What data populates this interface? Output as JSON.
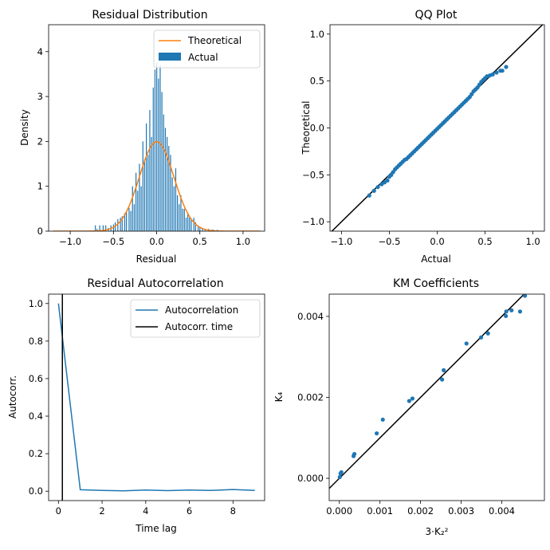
{
  "chart_data": [
    {
      "type": "bar",
      "title": "Residual Distribution",
      "xlabel": "Residual",
      "ylabel": "Density",
      "xlim": [
        -1.25,
        1.25
      ],
      "ylim": [
        0,
        4.6
      ],
      "xticks": [
        -1.0,
        -0.5,
        0.0,
        0.5,
        1.0
      ],
      "xtick_labels": [
        "−1.0",
        "−0.5",
        "0.0",
        "0.5",
        "1.0"
      ],
      "yticks": [
        0,
        1,
        2,
        3,
        4
      ],
      "ytick_labels": [
        "0",
        "1",
        "2",
        "3",
        "4"
      ],
      "legend": "top-right",
      "series": [
        {
          "name": "Theoretical",
          "kind": "line",
          "color": "#ff7f0e",
          "sigma": 0.2,
          "x_range": [
            -1.2,
            1.2
          ]
        },
        {
          "name": "Actual",
          "kind": "bar",
          "color": "#1f77b4",
          "bins": [
            [
              -0.71,
              0.13
            ],
            [
              -0.69,
              0.05
            ],
            [
              -0.66,
              0.13
            ],
            [
              -0.62,
              0.13
            ],
            [
              -0.59,
              0.13
            ],
            [
              -0.56,
              0.07
            ],
            [
              -0.53,
              0.13
            ],
            [
              -0.5,
              0.15
            ],
            [
              -0.48,
              0.2
            ],
            [
              -0.45,
              0.27
            ],
            [
              -0.42,
              0.3
            ],
            [
              -0.4,
              0.33
            ],
            [
              -0.37,
              0.4
            ],
            [
              -0.35,
              0.45
            ],
            [
              -0.32,
              0.52
            ],
            [
              -0.3,
              0.45
            ],
            [
              -0.28,
              1.0
            ],
            [
              -0.26,
              0.6
            ],
            [
              -0.24,
              1.3
            ],
            [
              -0.22,
              0.9
            ],
            [
              -0.2,
              1.5
            ],
            [
              -0.18,
              1.0
            ],
            [
              -0.16,
              2.0
            ],
            [
              -0.14,
              1.6
            ],
            [
              -0.12,
              2.4
            ],
            [
              -0.1,
              1.7
            ],
            [
              -0.08,
              2.7
            ],
            [
              -0.06,
              2.1
            ],
            [
              -0.04,
              3.2
            ],
            [
              -0.02,
              3.6
            ],
            [
              0.0,
              3.75
            ],
            [
              0.02,
              3.4
            ],
            [
              0.04,
              3.7
            ],
            [
              0.06,
              3.1
            ],
            [
              0.08,
              2.6
            ],
            [
              0.1,
              2.3
            ],
            [
              0.12,
              2.1
            ],
            [
              0.14,
              1.9
            ],
            [
              0.16,
              1.7
            ],
            [
              0.18,
              1.2
            ],
            [
              0.2,
              1.0
            ],
            [
              0.22,
              1.4
            ],
            [
              0.24,
              0.8
            ],
            [
              0.26,
              0.6
            ],
            [
              0.28,
              0.8
            ],
            [
              0.3,
              0.5
            ],
            [
              0.32,
              0.5
            ],
            [
              0.34,
              0.3
            ],
            [
              0.36,
              0.4
            ],
            [
              0.38,
              0.3
            ],
            [
              0.4,
              0.25
            ],
            [
              0.43,
              0.3
            ],
            [
              0.45,
              0.2
            ],
            [
              0.48,
              0.12
            ],
            [
              0.5,
              0.1
            ],
            [
              0.53,
              0.07
            ],
            [
              0.56,
              0.05
            ],
            [
              0.6,
              0.05
            ],
            [
              0.65,
              0.04
            ],
            [
              0.7,
              0.03
            ]
          ]
        }
      ]
    },
    {
      "type": "scatter",
      "title": "QQ Plot",
      "xlabel": "Actual",
      "ylabel": "Theoretical",
      "xlim": [
        -1.12,
        1.12
      ],
      "ylim": [
        -1.1,
        1.1
      ],
      "xticks": [
        -1.0,
        -0.5,
        0.0,
        0.5,
        1.0
      ],
      "xtick_labels": [
        "−1.0",
        "−0.5",
        "0.0",
        "0.5",
        "1.0"
      ],
      "yticks": [
        -1.0,
        -0.5,
        0.0,
        0.5,
        1.0
      ],
      "ytick_labels": [
        "−1.0",
        "−0.5",
        "0.0",
        "0.5",
        "1.0"
      ],
      "reference_line": {
        "slope": 1,
        "intercept": 0,
        "color": "#000000"
      },
      "points": [
        [
          -0.71,
          -0.72
        ],
        [
          -0.66,
          -0.67
        ],
        [
          -0.62,
          -0.63
        ],
        [
          -0.58,
          -0.6
        ],
        [
          -0.55,
          -0.58
        ],
        [
          -0.52,
          -0.56
        ],
        [
          -0.5,
          -0.52
        ],
        [
          -0.48,
          -0.5
        ],
        [
          -0.46,
          -0.47
        ],
        [
          -0.44,
          -0.44
        ],
        [
          -0.42,
          -0.42
        ],
        [
          -0.4,
          -0.4
        ],
        [
          -0.38,
          -0.38
        ],
        [
          -0.36,
          -0.36
        ],
        [
          -0.34,
          -0.34
        ],
        [
          -0.32,
          -0.33
        ],
        [
          -0.3,
          -0.31
        ],
        [
          -0.28,
          -0.29
        ],
        [
          -0.26,
          -0.27
        ],
        [
          -0.24,
          -0.25
        ],
        [
          -0.22,
          -0.23
        ],
        [
          -0.2,
          -0.21
        ],
        [
          -0.18,
          -0.19
        ],
        [
          -0.16,
          -0.17
        ],
        [
          -0.14,
          -0.15
        ],
        [
          -0.12,
          -0.13
        ],
        [
          -0.1,
          -0.11
        ],
        [
          -0.08,
          -0.09
        ],
        [
          -0.06,
          -0.07
        ],
        [
          -0.04,
          -0.05
        ],
        [
          -0.02,
          -0.03
        ],
        [
          0.0,
          -0.01
        ],
        [
          0.02,
          0.01
        ],
        [
          0.04,
          0.03
        ],
        [
          0.06,
          0.05
        ],
        [
          0.08,
          0.07
        ],
        [
          0.1,
          0.09
        ],
        [
          0.12,
          0.11
        ],
        [
          0.14,
          0.13
        ],
        [
          0.16,
          0.15
        ],
        [
          0.18,
          0.17
        ],
        [
          0.2,
          0.19
        ],
        [
          0.22,
          0.21
        ],
        [
          0.24,
          0.23
        ],
        [
          0.26,
          0.25
        ],
        [
          0.28,
          0.27
        ],
        [
          0.3,
          0.29
        ],
        [
          0.32,
          0.31
        ],
        [
          0.34,
          0.33
        ],
        [
          0.36,
          0.36
        ],
        [
          0.38,
          0.39
        ],
        [
          0.4,
          0.41
        ],
        [
          0.42,
          0.43
        ],
        [
          0.44,
          0.46
        ],
        [
          0.46,
          0.49
        ],
        [
          0.48,
          0.51
        ],
        [
          0.5,
          0.53
        ],
        [
          0.52,
          0.55
        ],
        [
          0.55,
          0.56
        ],
        [
          0.58,
          0.57
        ],
        [
          0.62,
          0.59
        ],
        [
          0.66,
          0.61
        ],
        [
          0.68,
          0.61
        ],
        [
          0.72,
          0.65
        ]
      ]
    },
    {
      "type": "line",
      "title": "Residual Autocorrelation",
      "xlabel": "Time lag",
      "ylabel": "Autocorr.",
      "xlim": [
        -0.45,
        9.45
      ],
      "ylim": [
        -0.05,
        1.05
      ],
      "xticks": [
        0,
        2,
        4,
        6,
        8
      ],
      "xtick_labels": [
        "0",
        "2",
        "4",
        "6",
        "8"
      ],
      "yticks": [
        0.0,
        0.2,
        0.4,
        0.6,
        0.8,
        1.0
      ],
      "ytick_labels": [
        "0.0",
        "0.2",
        "0.4",
        "0.6",
        "0.8",
        "1.0"
      ],
      "legend": "top-right",
      "series": [
        {
          "name": "Autocorrelation",
          "color": "#1f77b4",
          "x": [
            0,
            1,
            2,
            3,
            4,
            5,
            6,
            7,
            8,
            9
          ],
          "y": [
            1.0,
            0.008,
            0.004,
            0.002,
            0.006,
            0.003,
            0.006,
            0.004,
            0.009,
            0.004
          ]
        },
        {
          "name": "Autocorr. time",
          "color": "#000000",
          "vline": 0.18
        }
      ]
    },
    {
      "type": "scatter",
      "title": "KM Coefficients",
      "xlabel": "3·K₂²",
      "ylabel": "K₄",
      "xlim": [
        -0.00025,
        0.00505
      ],
      "ylim": [
        -0.00055,
        0.00455
      ],
      "xticks": [
        0.0,
        0.001,
        0.002,
        0.003,
        0.004
      ],
      "xtick_labels": [
        "0.000",
        "0.001",
        "0.002",
        "0.003",
        "0.004"
      ],
      "yticks": [
        0.0,
        0.002,
        0.004
      ],
      "ytick_labels": [
        "0.000",
        "0.002",
        "0.004"
      ],
      "reference_line": {
        "slope": 1,
        "intercept": 0,
        "color": "#000000"
      },
      "points": [
        [
          1e-05,
          3e-05
        ],
        [
          3e-05,
          0.00012
        ],
        [
          5e-05,
          0.00015
        ],
        [
          0.00035,
          0.00055
        ],
        [
          0.00037,
          0.0006
        ],
        [
          0.00092,
          0.00111
        ],
        [
          0.00107,
          0.00145
        ],
        [
          0.00172,
          0.00191
        ],
        [
          0.0018,
          0.00197
        ],
        [
          0.00253,
          0.00244
        ],
        [
          0.00257,
          0.00267
        ],
        [
          0.00313,
          0.00333
        ],
        [
          0.00349,
          0.00348
        ],
        [
          0.00366,
          0.00358
        ],
        [
          0.0041,
          0.00401
        ],
        [
          0.00411,
          0.00412
        ],
        [
          0.00424,
          0.00415
        ],
        [
          0.00445,
          0.00412
        ],
        [
          0.00457,
          0.00451
        ]
      ]
    }
  ]
}
